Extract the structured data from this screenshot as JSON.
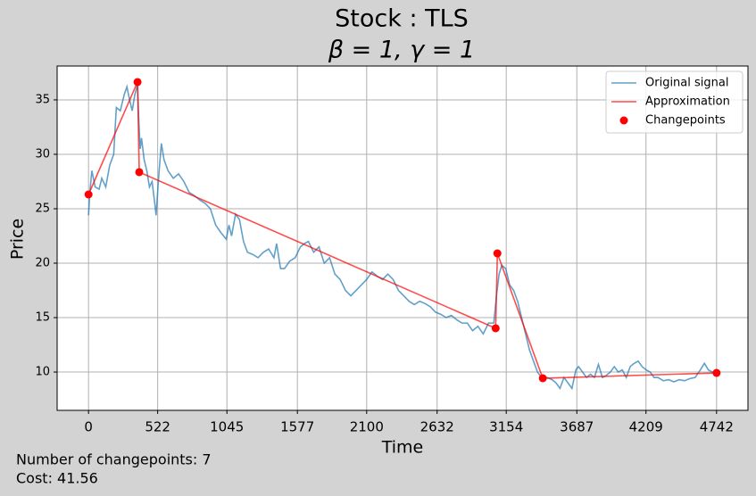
{
  "chart_data": {
    "type": "line",
    "title": "Stock : TLS",
    "subtitle": "β = 1, γ = 1",
    "x_label": "Time",
    "y_label": "Price",
    "xlim": [
      -237.1,
      4979.1
    ],
    "ylim": [
      6.48,
      38.11
    ],
    "xticks": [
      0,
      522,
      1045,
      1577,
      2100,
      2632,
      3154,
      3687,
      4209,
      4742
    ],
    "yticks": [
      10,
      15,
      20,
      25,
      30,
      35
    ],
    "grid": true,
    "legend": "upper right",
    "annotations": [
      "Number of changepoints: 7",
      "Cost: 41.56"
    ],
    "series": [
      {
        "name": "Original signal",
        "type": "line",
        "color": "#1f77b4",
        "alpha": 0.7,
        "x": [
          0,
          10,
          25,
          50,
          80,
          100,
          130,
          160,
          190,
          210,
          240,
          270,
          290,
          310,
          330,
          350,
          370,
          380,
          390,
          400,
          420,
          440,
          460,
          480,
          500,
          510,
          530,
          550,
          570,
          600,
          640,
          680,
          720,
          760,
          800,
          840,
          880,
          920,
          960,
          1000,
          1040,
          1060,
          1080,
          1110,
          1140,
          1170,
          1200,
          1240,
          1280,
          1320,
          1360,
          1400,
          1420,
          1450,
          1480,
          1520,
          1560,
          1600,
          1630,
          1660,
          1700,
          1740,
          1780,
          1820,
          1860,
          1900,
          1940,
          1980,
          2020,
          2060,
          2100,
          2140,
          2180,
          2220,
          2260,
          2300,
          2340,
          2380,
          2420,
          2460,
          2500,
          2540,
          2580,
          2620,
          2660,
          2700,
          2740,
          2780,
          2820,
          2860,
          2900,
          2940,
          2980,
          3020,
          3060,
          3080,
          3100,
          3120,
          3150,
          3180,
          3210,
          3240,
          3270,
          3300,
          3330,
          3360,
          3390,
          3420,
          3460,
          3500,
          3530,
          3560,
          3590,
          3620,
          3650,
          3680,
          3700,
          3730,
          3760,
          3790,
          3820,
          3850,
          3880,
          3910,
          3940,
          3970,
          4000,
          4030,
          4060,
          4090,
          4120,
          4150,
          4180,
          4210,
          4240,
          4270,
          4300,
          4340,
          4380,
          4420,
          4460,
          4500,
          4540,
          4580,
          4620,
          4650,
          4680,
          4710,
          4742
        ],
        "values": [
          24.4,
          26.5,
          28.5,
          27,
          26.8,
          27.8,
          27,
          29,
          30,
          34.3,
          34,
          35.5,
          36.2,
          35,
          34,
          35.5,
          36.4,
          33,
          30.5,
          31.5,
          29.5,
          28.5,
          27,
          27.5,
          25.5,
          24.4,
          28,
          31,
          29.5,
          28.5,
          27.8,
          28.2,
          27.5,
          26.5,
          26.2,
          25.8,
          25.5,
          25,
          23.5,
          22.8,
          22.2,
          23.5,
          22.5,
          24.5,
          24,
          22,
          21,
          20.8,
          20.5,
          21,
          21.3,
          20.5,
          21.8,
          19.5,
          19.5,
          20.2,
          20.5,
          21.5,
          21.8,
          22,
          21,
          21.5,
          20,
          20.5,
          19,
          18.5,
          17.5,
          17,
          17.5,
          18,
          18.5,
          19.2,
          18.8,
          18.5,
          19,
          18.5,
          17.5,
          17,
          16.5,
          16.2,
          16.5,
          16.3,
          16,
          15.5,
          15.3,
          15,
          15.2,
          14.8,
          14.5,
          14.5,
          13.8,
          14.2,
          13.5,
          14.5,
          14.5,
          17,
          19,
          19.8,
          19.5,
          18,
          17.5,
          16.5,
          15,
          13.5,
          12,
          11,
          10,
          9.5,
          9.5,
          9.3,
          9,
          8.5,
          9.5,
          9,
          8.5,
          10.2,
          10.5,
          10,
          9.5,
          9.8,
          9.5,
          10.7,
          9.5,
          9.7,
          10,
          10.5,
          10,
          10.2,
          9.5,
          10.5,
          10.8,
          11,
          10.5,
          10.2,
          10,
          9.5,
          9.5,
          9.2,
          9.3,
          9.1,
          9.3,
          9.2,
          9.4,
          9.5,
          10.2,
          10.8,
          10.2,
          10,
          10
        ]
      },
      {
        "name": "Approximation",
        "type": "line",
        "color": "#ff0000",
        "alpha": 0.7,
        "x": [
          0,
          370,
          383,
          3074,
          3087,
          3430,
          4742
        ],
        "values": [
          26.31,
          36.64,
          28.36,
          14.02,
          20.9,
          9.43,
          9.92
        ]
      },
      {
        "name": "Changepoints",
        "type": "scatter",
        "color": "#ff0000",
        "alpha": 1,
        "x": [
          0,
          370,
          383,
          3074,
          3087,
          3430,
          4742
        ],
        "values": [
          26.31,
          36.64,
          28.36,
          14.02,
          20.9,
          9.43,
          9.92
        ]
      }
    ]
  }
}
